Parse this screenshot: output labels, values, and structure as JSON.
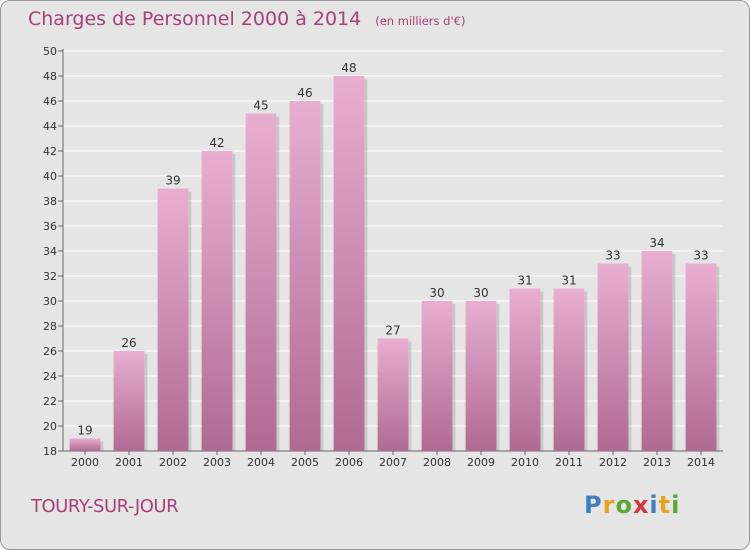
{
  "header": {
    "title": "Charges de Personnel 2000 à 2014",
    "unit": "(en milliers d'€)"
  },
  "footer": {
    "commune": "TOURY-SUR-JOUR",
    "logo": {
      "letters": [
        "P",
        "r",
        "o",
        "x",
        "i",
        "t",
        "i"
      ],
      "colors": [
        "#3d7fc1",
        "#e8a21a",
        "#5aa832",
        "#d8363a",
        "#3d7fc1",
        "#e8a21a",
        "#5aa832"
      ]
    }
  },
  "colors": {
    "accent": "#a8407a",
    "bar_top": "#e8aed1",
    "bar_bottom": "#b06a94",
    "background": "#e5e5e5",
    "grid": "#ffffff"
  },
  "chart_data": {
    "type": "bar",
    "categories": [
      "2000",
      "2001",
      "2002",
      "2003",
      "2004",
      "2005",
      "2006",
      "2007",
      "2008",
      "2009",
      "2010",
      "2011",
      "2012",
      "2013",
      "2014"
    ],
    "values": [
      19,
      26,
      39,
      42,
      45,
      46,
      48,
      27,
      30,
      30,
      31,
      31,
      33,
      34,
      33
    ],
    "data_labels": [
      "19",
      "26",
      "39",
      "42",
      "45",
      "46",
      "48",
      "27",
      "30",
      "30",
      "31",
      "31",
      "33",
      "34",
      "33"
    ],
    "yticks": [
      "18",
      "20",
      "22",
      "24",
      "26",
      "28",
      "30",
      "32",
      "34",
      "36",
      "38",
      "40",
      "42",
      "44",
      "46",
      "48",
      "50"
    ],
    "ylim": [
      18,
      50
    ],
    "grid": true,
    "title": "Charges de Personnel 2000 à 2014",
    "xlabel": "",
    "ylabel": ""
  }
}
